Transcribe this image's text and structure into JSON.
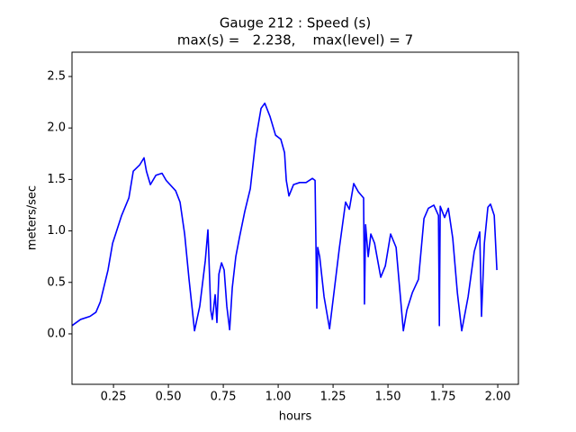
{
  "chart_data": {
    "type": "line",
    "title": "Gauge 212 : Speed (s)",
    "subtitle": "max(s) =   2.238,    max(level) = 7",
    "xlabel": "hours",
    "ylabel": "meters/sec",
    "xlim": [
      0.061,
      2.094
    ],
    "ylim": [
      -0.49,
      2.736
    ],
    "xticks": [
      0.25,
      {
        "value": 0.5,
        "label": "0.50"
      },
      0.75,
      {
        "value": 1,
        "label": "1.00"
      },
      1.25,
      {
        "value": 1.5,
        "label": "1.50"
      },
      1.75,
      {
        "value": 2,
        "label": "2.00"
      }
    ],
    "yticks": [
      {
        "value": 0,
        "label": "0.0"
      },
      0.5,
      {
        "value": 1,
        "label": "1.0"
      },
      1.5,
      {
        "value": 2,
        "label": "2.0"
      },
      2.5
    ],
    "color": "#0000ff",
    "x": [
      0.061,
      0.1,
      0.143,
      0.17,
      0.19,
      0.225,
      0.246,
      0.287,
      0.32,
      0.34,
      0.369,
      0.389,
      0.4,
      0.418,
      0.443,
      0.471,
      0.49,
      0.533,
      0.553,
      0.574,
      0.594,
      0.619,
      0.643,
      0.668,
      0.68,
      0.693,
      0.7,
      0.713,
      0.721,
      0.73,
      0.742,
      0.754,
      0.766,
      0.779,
      0.791,
      0.807,
      0.824,
      0.848,
      0.873,
      0.898,
      0.922,
      0.939,
      0.963,
      0.988,
      1.012,
      1.029,
      1.037,
      1.049,
      1.07,
      1.098,
      1.127,
      1.156,
      1.168,
      1.176,
      1.18,
      1.189,
      1.209,
      1.234,
      1.254,
      1.279,
      1.307,
      1.324,
      1.344,
      1.365,
      1.389,
      1.393,
      1.398,
      1.41,
      1.422,
      1.439,
      1.467,
      1.488,
      1.512,
      1.537,
      1.57,
      1.586,
      1.611,
      1.639,
      1.664,
      1.684,
      1.709,
      1.73,
      1.734,
      1.738,
      1.758,
      1.775,
      1.795,
      1.816,
      1.836,
      1.865,
      1.893,
      1.918,
      1.926,
      1.939,
      1.955,
      1.967,
      1.984,
      1.996
    ],
    "values": [
      0.08,
      0.14,
      0.17,
      0.21,
      0.31,
      0.62,
      0.88,
      1.15,
      1.32,
      1.58,
      1.64,
      1.71,
      1.58,
      1.45,
      1.54,
      1.56,
      1.49,
      1.39,
      1.28,
      0.97,
      0.53,
      0.03,
      0.27,
      0.71,
      1.01,
      0.23,
      0.14,
      0.38,
      0.11,
      0.58,
      0.69,
      0.62,
      0.27,
      0.04,
      0.45,
      0.75,
      0.94,
      1.19,
      1.41,
      1.89,
      2.19,
      2.24,
      2.11,
      1.93,
      1.89,
      1.76,
      1.49,
      1.34,
      1.45,
      1.47,
      1.47,
      1.51,
      1.49,
      0.25,
      0.84,
      0.75,
      0.36,
      0.05,
      0.4,
      0.84,
      1.28,
      1.21,
      1.46,
      1.38,
      1.32,
      0.29,
      1.06,
      0.75,
      0.97,
      0.88,
      0.55,
      0.66,
      0.97,
      0.84,
      0.03,
      0.23,
      0.4,
      0.53,
      1.12,
      1.22,
      1.25,
      1.15,
      0.08,
      1.24,
      1.13,
      1.22,
      0.93,
      0.4,
      0.03,
      0.36,
      0.8,
      0.99,
      0.17,
      0.88,
      1.23,
      1.26,
      1.15,
      0.62
    ]
  }
}
